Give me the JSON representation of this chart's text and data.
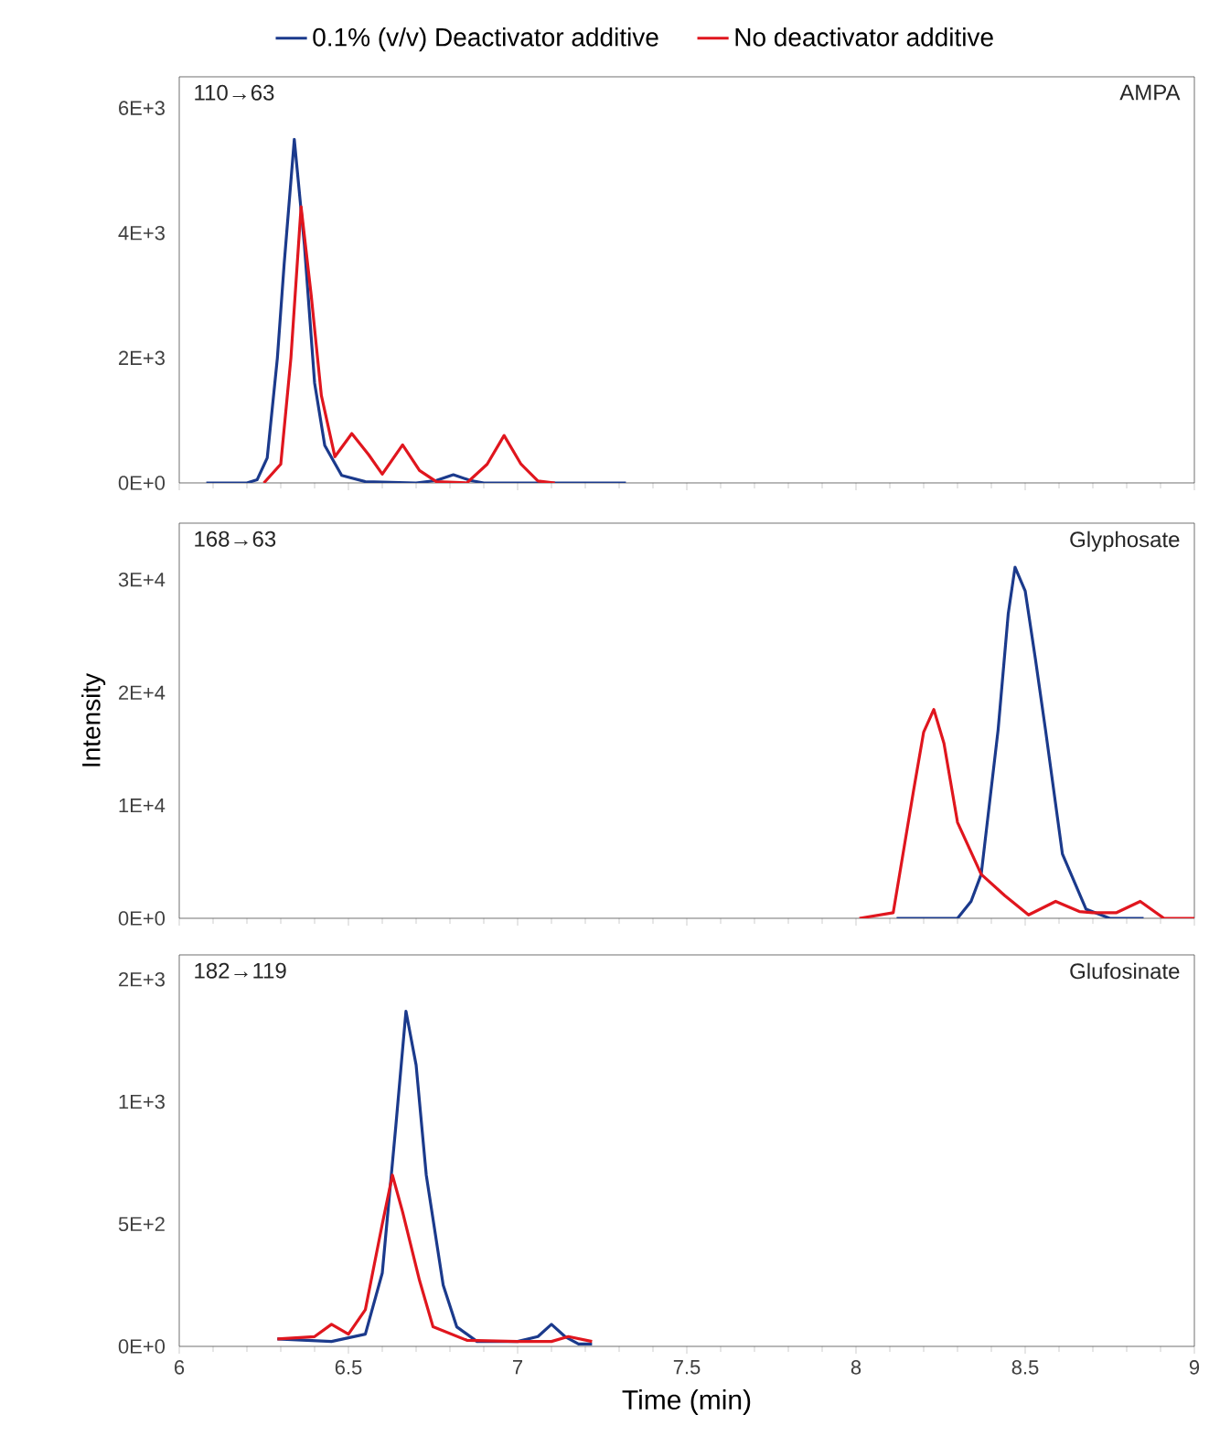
{
  "chart_data": [
    {
      "type": "line",
      "xlim": [
        6,
        9
      ],
      "ylim": [
        0,
        6500
      ],
      "xticks": [
        6,
        6.5,
        7,
        7.5,
        8,
        8.5,
        9
      ],
      "yticks": [
        {
          "value": 0,
          "label": "0E+0"
        },
        {
          "value": 2000,
          "label": "2E+3"
        },
        {
          "value": 4000,
          "label": "4E+3"
        },
        {
          "value": 6000,
          "label": "6E+3"
        }
      ],
      "tick_labels": "y",
      "legend": "top",
      "line_style": "solid",
      "annotations": [
        "110→63",
        "AMPA"
      ],
      "series": [
        {
          "name": "0.1% (v/v)  Deactivator additive",
          "color": "#1b3a8c",
          "x": [
            6.08,
            6.2,
            6.23,
            6.26,
            6.29,
            6.31,
            6.34,
            6.37,
            6.4,
            6.43,
            6.48,
            6.55,
            6.7,
            6.76,
            6.81,
            6.86,
            6.9,
            7.32
          ],
          "values": [
            0,
            0,
            50,
            400,
            2000,
            3500,
            5500,
            3800,
            1600,
            600,
            120,
            20,
            0,
            40,
            130,
            40,
            0,
            0
          ]
        },
        {
          "name": "No deactivator additive",
          "color": "#e0161e",
          "x": [
            6.25,
            6.3,
            6.33,
            6.36,
            6.39,
            6.42,
            6.46,
            6.51,
            6.56,
            6.6,
            6.66,
            6.71,
            6.76,
            6.85,
            6.91,
            6.96,
            7.01,
            7.06,
            7.11
          ],
          "values": [
            0,
            300,
            2000,
            4420,
            3000,
            1400,
            420,
            790,
            450,
            140,
            610,
            200,
            20,
            0,
            300,
            760,
            300,
            30,
            0
          ]
        }
      ]
    },
    {
      "type": "line",
      "xlim": [
        6,
        9
      ],
      "ylim": [
        0,
        35000
      ],
      "xticks": [
        6,
        6.5,
        7,
        7.5,
        8,
        8.5,
        9
      ],
      "yticks": [
        {
          "value": 0,
          "label": "0E+0"
        },
        {
          "value": 10000,
          "label": "1E+4"
        },
        {
          "value": 20000,
          "label": "2E+4"
        },
        {
          "value": 30000,
          "label": "3E+4"
        }
      ],
      "tick_labels": "y",
      "ylabel": "Intensity",
      "line_style": "solid",
      "annotations": [
        "168→63",
        "Glyphosate"
      ],
      "series": [
        {
          "color": "#1b3a8c",
          "x": [
            8.12,
            8.3,
            8.34,
            8.37,
            8.42,
            8.45,
            8.47,
            8.5,
            8.53,
            8.56,
            8.61,
            8.68,
            8.75,
            8.85
          ],
          "values": [
            0,
            0,
            1500,
            3900,
            16700,
            27000,
            31100,
            29000,
            23000,
            16700,
            5700,
            800,
            0,
            0
          ]
        },
        {
          "color": "#e0161e",
          "x": [
            8.01,
            8.11,
            8.17,
            8.2,
            8.23,
            8.26,
            8.3,
            8.37,
            8.44,
            8.51,
            8.59,
            8.66,
            8.7,
            8.77,
            8.84,
            8.91,
            9.0
          ],
          "values": [
            0,
            500,
            11300,
            16500,
            18500,
            15500,
            8500,
            3900,
            2000,
            300,
            1500,
            600,
            500,
            500,
            1500,
            0,
            0
          ]
        }
      ]
    },
    {
      "type": "line",
      "xlim": [
        6,
        9
      ],
      "ylim": [
        0,
        1600
      ],
      "xticks": [
        6,
        6.5,
        7,
        7.5,
        8,
        8.5,
        9
      ],
      "yticks": [
        {
          "value": 0,
          "label": "0E+0"
        },
        {
          "value": 500,
          "label": "5E+2"
        },
        {
          "value": 1000,
          "label": "1E+3"
        },
        {
          "value": 1500,
          "label": "2E+3"
        }
      ],
      "xlabel": "Time (min)",
      "line_style": "solid",
      "annotations": [
        "182→119",
        "Glufosinate"
      ],
      "series": [
        {
          "color": "#1b3a8c",
          "x": [
            6.29,
            6.45,
            6.55,
            6.6,
            6.64,
            6.67,
            6.7,
            6.73,
            6.78,
            6.82,
            6.88,
            7.0,
            7.06,
            7.1,
            7.14,
            7.18,
            7.22
          ],
          "values": [
            30,
            20,
            50,
            300,
            900,
            1370,
            1150,
            700,
            250,
            80,
            20,
            20,
            40,
            90,
            40,
            10,
            10
          ]
        },
        {
          "color": "#e0161e",
          "x": [
            6.29,
            6.4,
            6.45,
            6.5,
            6.55,
            6.6,
            6.63,
            6.66,
            6.71,
            6.75,
            6.85,
            7.0,
            7.1,
            7.15,
            7.22
          ],
          "values": [
            30,
            40,
            90,
            50,
            150,
            500,
            700,
            550,
            270,
            80,
            25,
            20,
            20,
            40,
            20
          ]
        }
      ]
    }
  ]
}
